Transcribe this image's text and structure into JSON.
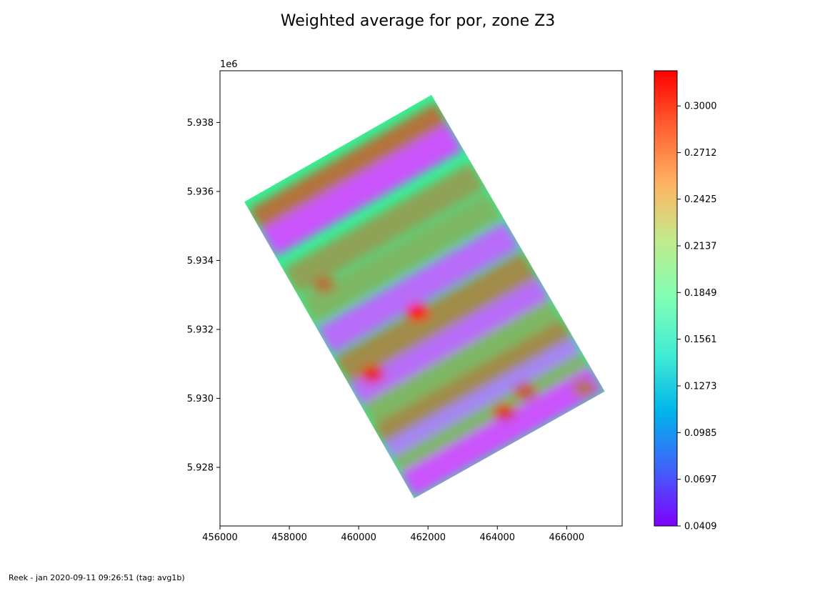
{
  "chart_data": {
    "type": "heatmap",
    "title": "Weighted average for por, zone Z3",
    "xlabel": "",
    "ylabel": "",
    "x_ticks": [
      "456000",
      "458000",
      "460000",
      "462000",
      "464000",
      "466000"
    ],
    "y_ticks": [
      "5.928",
      "5.930",
      "5.932",
      "5.934",
      "5.936",
      "5.938"
    ],
    "y_offset_label": "1e6",
    "xlim": [
      456000,
      467600
    ],
    "ylim": [
      5926300,
      5939500
    ],
    "grid": false,
    "colormap": "rainbow",
    "colorbar": {
      "min": 0.0409,
      "max": 0.3217,
      "ticks": [
        "0.0409",
        "0.0697",
        "0.0985",
        "0.1273",
        "0.1561",
        "0.1849",
        "0.2137",
        "0.2425",
        "0.2712",
        "0.3000"
      ]
    },
    "region_corners": [
      {
        "x": 456700,
        "y": 5935700
      },
      {
        "x": 462100,
        "y": 5938800
      },
      {
        "x": 467100,
        "y": 5930200
      },
      {
        "x": 461600,
        "y": 5927100
      }
    ],
    "bands": [
      {
        "s": 0.07,
        "v": 0.28
      },
      {
        "s": 0.14,
        "v": 0.07
      },
      {
        "s": 0.27,
        "v": 0.26
      },
      {
        "s": 0.37,
        "v": 0.25
      },
      {
        "s": 0.47,
        "v": 0.08
      },
      {
        "s": 0.57,
        "v": 0.27
      },
      {
        "s": 0.66,
        "v": 0.08
      },
      {
        "s": 0.73,
        "v": 0.25
      },
      {
        "s": 0.8,
        "v": 0.27
      },
      {
        "s": 0.86,
        "v": 0.09
      },
      {
        "s": 0.91,
        "v": 0.25
      },
      {
        "s": 0.96,
        "v": 0.07
      }
    ],
    "hot_spots": [
      {
        "x": 461700,
        "y": 5932500,
        "v": 0.32
      },
      {
        "x": 460400,
        "y": 5930700,
        "v": 0.31
      },
      {
        "x": 464200,
        "y": 5929600,
        "v": 0.3
      },
      {
        "x": 464800,
        "y": 5930200,
        "v": 0.29
      },
      {
        "x": 459000,
        "y": 5933300,
        "v": 0.28
      },
      {
        "x": 466500,
        "y": 5930300,
        "v": 0.28
      }
    ]
  },
  "footer": "Reek - jan 2020-09-11 09:26:51 (tag: avg1b)"
}
